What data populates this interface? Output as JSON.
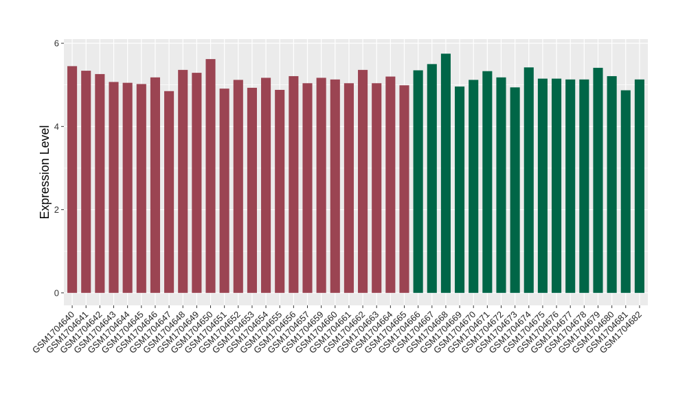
{
  "chart_data": {
    "type": "bar",
    "title": "",
    "xlabel": "",
    "ylabel": "Expression Level",
    "ylim": [
      -0.3,
      6.1
    ],
    "yticks": [
      0,
      2,
      4,
      6
    ],
    "grid": true,
    "legend": "none",
    "colors": {
      "group1": "#9B4452",
      "group2": "#006647",
      "panel": "#EBEBEB",
      "grid": "#FFFFFF"
    },
    "categories": [
      "GSM1704640",
      "GSM1704641",
      "GSM1704642",
      "GSM1704643",
      "GSM1704644",
      "GSM1704645",
      "GSM1704646",
      "GSM1704647",
      "GSM1704648",
      "GSM1704649",
      "GSM1704650",
      "GSM1704651",
      "GSM1704652",
      "GSM1704653",
      "GSM1704654",
      "GSM1704655",
      "GSM1704656",
      "GSM1704657",
      "GSM1704659",
      "GSM1704660",
      "GSM1704661",
      "GSM1704662",
      "GSM1704663",
      "GSM1704664",
      "GSM1704665",
      "GSM1704666",
      "GSM1704667",
      "GSM1704668",
      "GSM1704669",
      "GSM1704670",
      "GSM1704671",
      "GSM1704672",
      "GSM1704673",
      "GSM1704674",
      "GSM1704675",
      "GSM1704676",
      "GSM1704677",
      "GSM1704678",
      "GSM1704679",
      "GSM1704680",
      "GSM1704681",
      "GSM1704682"
    ],
    "values": [
      5.45,
      5.34,
      5.26,
      5.07,
      5.05,
      5.02,
      5.18,
      4.85,
      5.36,
      5.29,
      5.62,
      4.91,
      5.12,
      4.93,
      5.17,
      4.88,
      5.21,
      5.04,
      5.17,
      5.13,
      5.04,
      5.36,
      5.04,
      5.2,
      4.99,
      5.35,
      5.5,
      5.75,
      4.96,
      5.12,
      5.33,
      5.18,
      4.94,
      5.42,
      5.15,
      5.15,
      5.13,
      5.13,
      5.41,
      5.21,
      4.87,
      5.13
    ],
    "groups": [
      1,
      1,
      1,
      1,
      1,
      1,
      1,
      1,
      1,
      1,
      1,
      1,
      1,
      1,
      1,
      1,
      1,
      1,
      1,
      1,
      1,
      1,
      1,
      1,
      1,
      2,
      2,
      2,
      2,
      2,
      2,
      2,
      2,
      2,
      2,
      2,
      2,
      2,
      2,
      2,
      2,
      2
    ]
  }
}
